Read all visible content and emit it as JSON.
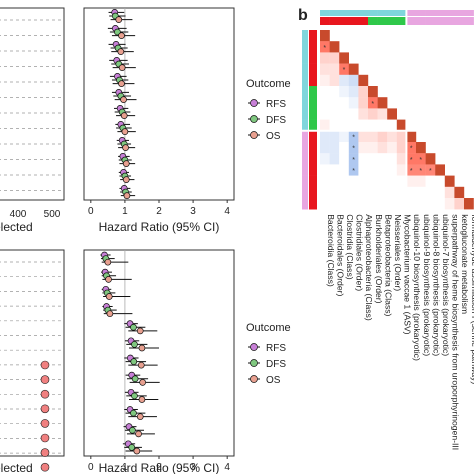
{
  "figure": {
    "panel_label": "b"
  },
  "chart_data": [
    {
      "type": "scatter",
      "panel": "left-top",
      "xlabel": "elected",
      "ticks": [
        "400",
        "500"
      ],
      "xlim": [
        0,
        500
      ],
      "values": []
    },
    {
      "type": "scatter",
      "panel": "forest-top",
      "xlabel": "Hazard Ratio (95% CI)",
      "xticks": [
        0,
        1,
        2,
        3,
        4
      ],
      "xlim": [
        -0.2,
        4.2
      ],
      "reference_line": 1,
      "legend": {
        "title": "Outcome",
        "position": "right"
      },
      "series": [
        {
          "name": "RFS",
          "color": "#c77fd6",
          "values": [
            0.7,
            0.72,
            0.74,
            0.76,
            0.78,
            0.82,
            0.86,
            0.88,
            0.92,
            0.94,
            0.96,
            0.98
          ],
          "lower": [
            0.52,
            0.5,
            0.52,
            0.54,
            0.56,
            0.62,
            0.68,
            0.72,
            0.76,
            0.8,
            0.82,
            0.84
          ],
          "upper": [
            0.98,
            1.05,
            1.02,
            1.08,
            1.05,
            1.12,
            1.1,
            1.15,
            1.12,
            1.14,
            1.12,
            1.16
          ]
        },
        {
          "name": "DFS",
          "color": "#7fc77f",
          "values": [
            0.72,
            0.78,
            0.8,
            0.82,
            0.84,
            0.88,
            0.92,
            0.94,
            0.98,
            1.0,
            1.0,
            1.02
          ],
          "lower": [
            0.54,
            0.56,
            0.58,
            0.6,
            0.62,
            0.66,
            0.7,
            0.74,
            0.78,
            0.82,
            0.84,
            0.86
          ],
          "upper": [
            1.02,
            1.1,
            1.08,
            1.12,
            1.1,
            1.18,
            1.16,
            1.2,
            1.18,
            1.2,
            1.18,
            1.2
          ]
        },
        {
          "name": "OS",
          "color": "#e8a090",
          "values": [
            0.82,
            0.9,
            0.88,
            0.92,
            0.9,
            0.96,
            0.98,
            1.0,
            1.02,
            1.04,
            1.04,
            1.06
          ],
          "lower": [
            0.58,
            0.62,
            0.6,
            0.64,
            0.64,
            0.7,
            0.74,
            0.78,
            0.8,
            0.84,
            0.86,
            0.88
          ],
          "upper": [
            1.22,
            1.3,
            1.26,
            1.32,
            1.28,
            1.34,
            1.3,
            1.32,
            1.3,
            1.3,
            1.28,
            1.3
          ]
        }
      ]
    },
    {
      "type": "scatter",
      "panel": "left-bottom",
      "xlabel": "elected",
      "x": [
        470,
        470,
        470,
        470,
        470,
        470,
        470,
        470,
        470
      ],
      "color": "#f08080",
      "xlim": [
        0,
        500
      ]
    },
    {
      "type": "scatter",
      "panel": "forest-bottom",
      "xlabel": "Hazard Ratio (95% CI)",
      "xticks": [
        0,
        1,
        2,
        3,
        4
      ],
      "xlim": [
        -0.2,
        4.2
      ],
      "reference_line": 1,
      "legend": {
        "title": "Outcome",
        "position": "right"
      },
      "series": [
        {
          "name": "RFS",
          "color": "#c77fd6",
          "values": [
            0.4,
            0.42,
            0.44,
            0.46,
            1.15,
            1.18,
            1.16,
            1.2,
            1.18,
            1.15,
            1.12,
            1.1
          ],
          "lower": [
            0.28,
            0.3,
            0.32,
            0.34,
            0.98,
            1.0,
            0.98,
            1.02,
            1.0,
            0.98,
            0.96,
            0.94
          ],
          "upper": [
            0.58,
            0.62,
            0.6,
            0.64,
            1.38,
            1.42,
            1.4,
            1.45,
            1.4,
            1.38,
            1.34,
            1.3
          ]
        },
        {
          "name": "DFS",
          "color": "#7fc77f",
          "values": [
            0.44,
            0.46,
            0.48,
            0.5,
            1.25,
            1.28,
            1.26,
            1.3,
            1.28,
            1.25,
            1.22,
            1.2
          ],
          "lower": [
            0.3,
            0.32,
            0.34,
            0.36,
            1.02,
            1.04,
            1.02,
            1.06,
            1.04,
            1.02,
            1.0,
            0.98
          ],
          "upper": [
            0.7,
            0.74,
            0.72,
            0.76,
            1.6,
            1.66,
            1.62,
            1.68,
            1.64,
            1.6,
            1.56,
            1.5
          ]
        },
        {
          "name": "OS",
          "color": "#e8a090",
          "values": [
            0.5,
            0.52,
            0.54,
            0.56,
            1.45,
            1.5,
            1.48,
            1.52,
            1.5,
            1.45,
            1.4,
            1.35
          ],
          "lower": [
            0.32,
            0.34,
            0.36,
            0.38,
            1.1,
            1.12,
            1.1,
            1.14,
            1.12,
            1.1,
            1.06,
            1.02
          ],
          "upper": [
            1.1,
            1.2,
            1.16,
            1.22,
            1.95,
            2.0,
            1.96,
            2.02,
            1.98,
            1.94,
            1.88,
            1.8
          ]
        }
      ]
    },
    {
      "type": "heatmap",
      "panel": "b",
      "n": 16,
      "col_labels": [
        "Bacteroidia (Class)",
        "Bacteroidales (Order)",
        "Clostridia (Class)",
        "Clostridiales (Order)",
        "Alphaproteobacteria (Class)",
        "Burkholderiales (Order)",
        "Betaproteobacteria (Class)",
        "Neisseriales (Order)",
        "Mycobacterium vaccae 1 (ASV)",
        "ubiquinol-10 biosynthesis (prokaryotic)",
        "ubiquinol-9 biosynthesis (prokaryotic)",
        "ubiquinol-8 biosynthesis (prokaryotic)",
        "ubiquinol-7 biosynthesis (prokaryotic)",
        "superpathway of heme biosynthesis from uroporphyrinogen-III",
        "ketogluconate metabolism",
        "formaldehyde assimilation I (serine pathway)"
      ],
      "top_bar_colors": [
        "#e8161e",
        "#e8161e",
        "#e8161e",
        "#e8161e",
        "#e8161e",
        "#2fc84a",
        "#2fc84a",
        "#2fc84a",
        "#2fc84a",
        "#e8a6e0",
        "#e8a6e0",
        "#e8a6e0",
        "#e8a6e0",
        "#e8a6e0",
        "#e8a6e0",
        "#e8a6e0"
      ],
      "top_bar2_colors": [
        "#7fd6dc",
        "#7fd6dc",
        "#7fd6dc",
        "#7fd6dc",
        "#7fd6dc",
        "#7fd6dc",
        "#7fd6dc",
        "#7fd6dc",
        "#7fd6dc",
        "#e8a6e0",
        "#e8a6e0",
        "#e8a6e0",
        "#e8a6e0",
        "#e8a6e0",
        "#e8a6e0",
        "#e8a6e0"
      ],
      "side_bar_colors": [
        "#7fd6dc",
        "#7fd6dc",
        "#7fd6dc",
        "#7fd6dc",
        "#7fd6dc",
        "#7fd6dc",
        "#7fd6dc",
        "#7fd6dc",
        "#7fd6dc",
        "#e8a6e0",
        "#e8a6e0",
        "#e8a6e0",
        "#e8a6e0",
        "#e8a6e0",
        "#e8a6e0",
        "#e8a6e0"
      ],
      "side_bar2_colors": [
        "#e8161e",
        "#e8161e",
        "#e8161e",
        "#e8161e",
        "#e8161e",
        "#2fc84a",
        "#2fc84a",
        "#2fc84a",
        "#2fc84a",
        "#e8161e",
        "#e8161e",
        "#e8161e",
        "#e8161e",
        "#e8161e",
        "#e8161e",
        "#e8161e"
      ],
      "diagonal_color": "#c84a2c",
      "cells": [
        [
          1,
          0.9,
          0.3,
          0.2,
          0.1,
          0.0,
          0.0,
          0.0,
          0.1,
          -0.2,
          -0.2,
          -0.1,
          0.0,
          0.0,
          0.0,
          0.0
        ],
        [
          0.9,
          1,
          0.3,
          0.2,
          0.2,
          0.0,
          0.0,
          0.0,
          0.0,
          -0.2,
          -0.2,
          -0.2,
          0.0,
          0.0,
          0.0,
          0.0
        ],
        [
          0.3,
          0.3,
          1,
          0.9,
          -0.2,
          -0.1,
          0.0,
          0.0,
          0.0,
          -0.1,
          0.0,
          0.0,
          0.0,
          0.0,
          0.0,
          0.0
        ],
        [
          0.2,
          0.2,
          0.9,
          1,
          -0.3,
          -0.2,
          -0.1,
          0.0,
          0.0,
          -0.5,
          -0.5,
          -0.5,
          -0.5,
          0.0,
          0.0,
          0.0
        ],
        [
          0.1,
          0.2,
          -0.2,
          -0.3,
          1,
          0.3,
          0.3,
          0.2,
          0.0,
          0.2,
          0.1,
          0.0,
          0.0,
          0.0,
          0.0,
          0.0
        ],
        [
          0.0,
          0.0,
          -0.1,
          -0.2,
          0.3,
          1,
          0.9,
          0.3,
          0.0,
          0.2,
          0.1,
          0.0,
          0.0,
          0.0,
          0.0,
          0.0
        ],
        [
          0.0,
          0.0,
          0.0,
          -0.1,
          0.3,
          0.9,
          1,
          0.2,
          0.0,
          0.3,
          0.2,
          0.0,
          0.0,
          0.0,
          0.0,
          0.0
        ],
        [
          0.0,
          0.0,
          0.0,
          0.0,
          0.2,
          0.3,
          0.2,
          1,
          0.0,
          0.2,
          0.1,
          0.0,
          0.0,
          0.0,
          0.0,
          0.0
        ],
        [
          0.1,
          0.0,
          0.0,
          0.0,
          0.0,
          0.0,
          0.0,
          0.0,
          1,
          0.3,
          0.3,
          0.2,
          0.1,
          0.0,
          0.0,
          0.0
        ],
        [
          -0.2,
          -0.2,
          -0.1,
          -0.5,
          0.2,
          0.2,
          0.3,
          0.2,
          0.3,
          1,
          0.9,
          0.9,
          0.8,
          0.1,
          0.0,
          0.0
        ],
        [
          -0.2,
          -0.2,
          0.0,
          -0.5,
          0.1,
          0.1,
          0.2,
          0.1,
          0.3,
          0.9,
          1,
          0.9,
          0.8,
          0.1,
          0.0,
          0.0
        ],
        [
          -0.1,
          -0.2,
          0.0,
          -0.5,
          0.0,
          0.0,
          0.0,
          0.0,
          0.2,
          0.9,
          0.9,
          1,
          0.8,
          0.0,
          0.0,
          0.0
        ],
        [
          0.0,
          0.0,
          0.0,
          -0.5,
          0.0,
          0.0,
          0.0,
          0.0,
          0.1,
          0.8,
          0.8,
          0.8,
          1,
          0.0,
          0.0,
          0.0
        ],
        [
          0.0,
          0.0,
          0.0,
          0.0,
          0.0,
          0.0,
          0.0,
          0.0,
          0.0,
          0.1,
          0.1,
          0.0,
          0.0,
          1,
          0.2,
          0.1
        ],
        [
          0.0,
          0.0,
          0.0,
          0.0,
          0.0,
          0.0,
          0.0,
          0.0,
          0.0,
          0.0,
          0.0,
          0.0,
          0.0,
          0.2,
          1,
          0.3
        ],
        [
          0.0,
          0.0,
          0.0,
          0.0,
          0.0,
          0.0,
          0.0,
          0.0,
          0.0,
          0.0,
          0.0,
          0.0,
          0.0,
          0.1,
          0.3,
          1
        ]
      ]
    }
  ]
}
